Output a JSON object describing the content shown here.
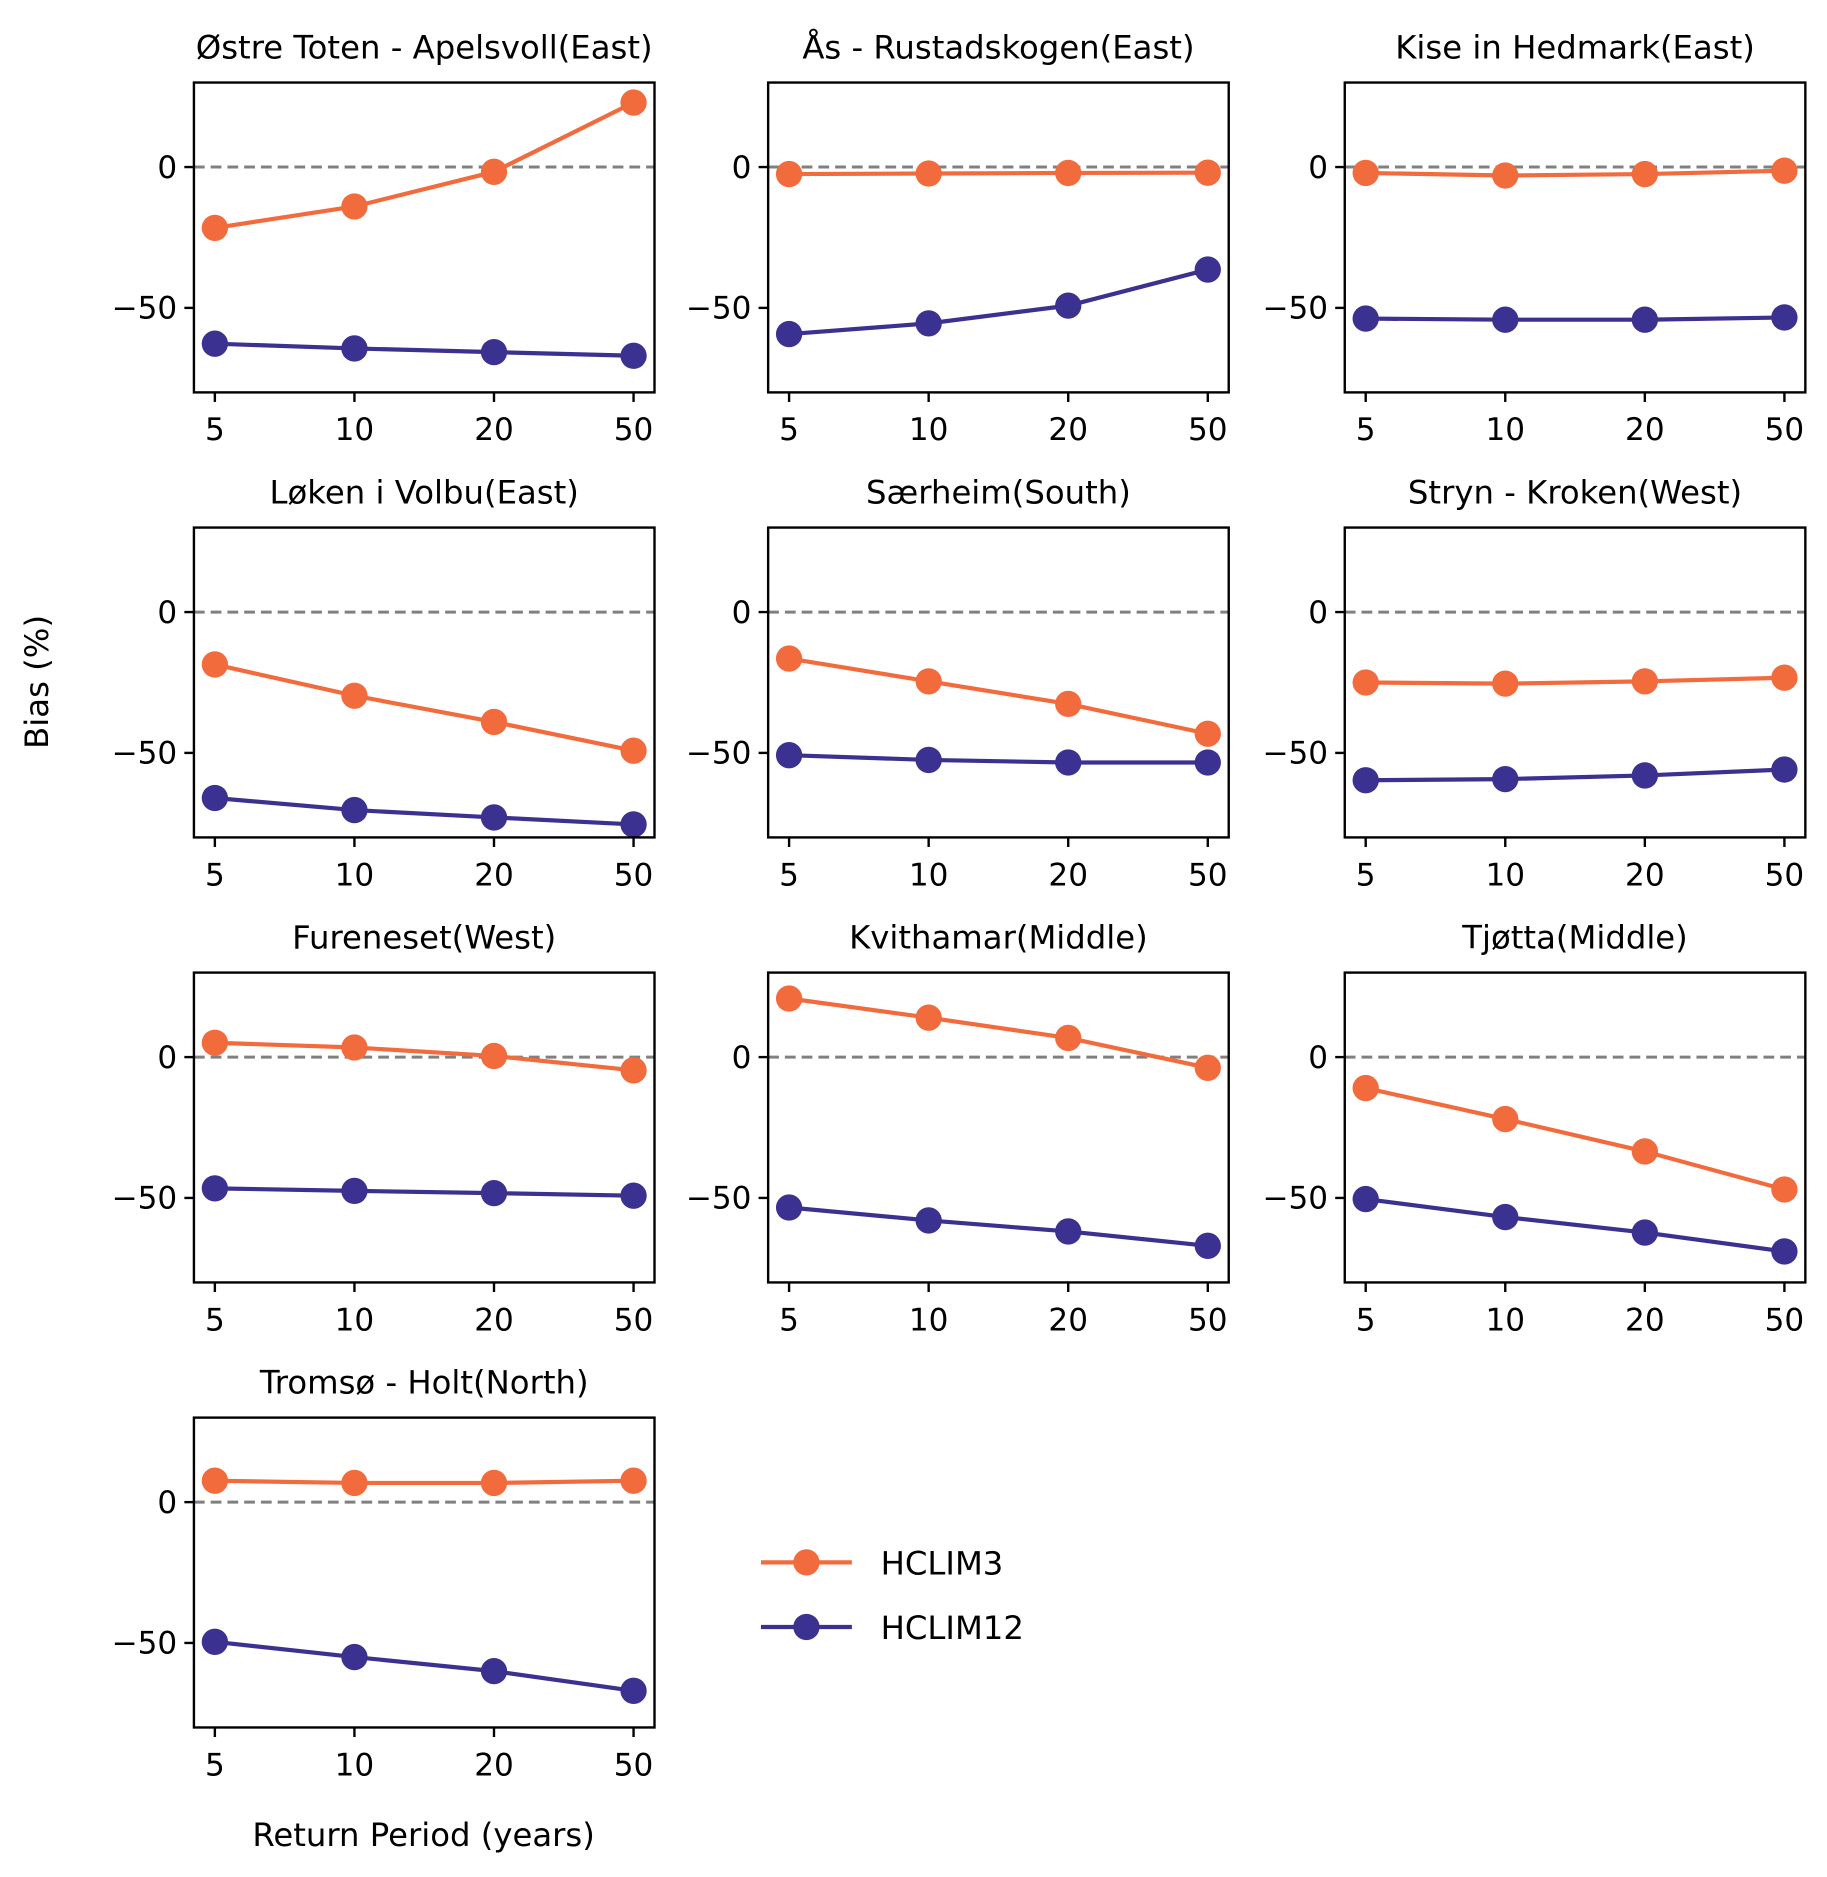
{
  "chart_data": {
    "type": "line",
    "ylabel": "Bias (%)",
    "xlabel": "Return Period (years)",
    "categories": [
      "5",
      "10",
      "20",
      "50"
    ],
    "ylim": [
      -80,
      30
    ],
    "yticks": [
      "0",
      "−50"
    ],
    "ytick_values": [
      0,
      -50
    ],
    "reference_line": 0,
    "legend": {
      "placement": "right-of-last-panel",
      "entries": [
        "HCLIM3",
        "HCLIM12"
      ]
    },
    "colors": {
      "HCLIM3": "#f26b3d",
      "HCLIM12": "#3b3190",
      "reference": "#808080"
    },
    "panels": [
      {
        "title": "Østre Toten - Apelsvoll(East)",
        "series": [
          {
            "name": "HCLIM3",
            "values": [
              -21.6,
              -14,
              -1.7,
              22.9
            ]
          },
          {
            "name": "HCLIM12",
            "values": [
              -62.7,
              -64.4,
              -65.7,
              -67
            ]
          }
        ]
      },
      {
        "title": "Ås - Rustadskogen(East)",
        "series": [
          {
            "name": "HCLIM3",
            "values": [
              -2.5,
              -2.3,
              -2.1,
              -2
            ]
          },
          {
            "name": "HCLIM12",
            "values": [
              -59.3,
              -55.5,
              -49.2,
              -36.4
            ]
          }
        ]
      },
      {
        "title": "Kise in Hedmark(East)",
        "series": [
          {
            "name": "HCLIM3",
            "values": [
              -2.1,
              -3,
              -2.5,
              -1.3
            ]
          },
          {
            "name": "HCLIM12",
            "values": [
              -53.8,
              -54.2,
              -54.2,
              -53.4
            ]
          }
        ]
      },
      {
        "title": "Løken i Volbu(East)",
        "series": [
          {
            "name": "HCLIM3",
            "values": [
              -18.6,
              -29.7,
              -39,
              -49.2
            ]
          },
          {
            "name": "HCLIM12",
            "values": [
              -66,
              -70.3,
              -72.9,
              -75.4
            ]
          }
        ]
      },
      {
        "title": "Særheim(South)",
        "series": [
          {
            "name": "HCLIM3",
            "values": [
              -16.5,
              -24.6,
              -32.6,
              -43.2
            ]
          },
          {
            "name": "HCLIM12",
            "values": [
              -50.8,
              -52.5,
              -53.4,
              -53.4
            ]
          }
        ]
      },
      {
        "title": "Stryn - Kroken(West)",
        "series": [
          {
            "name": "HCLIM3",
            "values": [
              -25,
              -25.4,
              -24.6,
              -23.3
            ]
          },
          {
            "name": "HCLIM12",
            "values": [
              -59.7,
              -59.3,
              -58,
              -55.9
            ]
          }
        ]
      },
      {
        "title": "Fureneset(West)",
        "series": [
          {
            "name": "HCLIM3",
            "values": [
              5.1,
              3.4,
              0.4,
              -4.7
            ]
          },
          {
            "name": "HCLIM12",
            "values": [
              -46.6,
              -47.5,
              -48.3,
              -49.2
            ]
          }
        ]
      },
      {
        "title": "Kvithamar(Middle)",
        "series": [
          {
            "name": "HCLIM3",
            "values": [
              20.8,
              14,
              6.8,
              -3.8
            ]
          },
          {
            "name": "HCLIM12",
            "values": [
              -53.4,
              -58,
              -61.9,
              -67
            ]
          }
        ]
      },
      {
        "title": "Tjøtta(Middle)",
        "series": [
          {
            "name": "HCLIM3",
            "values": [
              -11,
              -22,
              -33.5,
              -47
            ]
          },
          {
            "name": "HCLIM12",
            "values": [
              -50.4,
              -56.8,
              -62.3,
              -69
            ]
          }
        ]
      },
      {
        "title": "Tromsø - Holt(North)",
        "series": [
          {
            "name": "HCLIM3",
            "values": [
              7.6,
              6.8,
              6.8,
              7.6
            ]
          },
          {
            "name": "HCLIM12",
            "values": [
              -49.6,
              -55,
              -60,
              -67
            ]
          }
        ]
      }
    ]
  }
}
